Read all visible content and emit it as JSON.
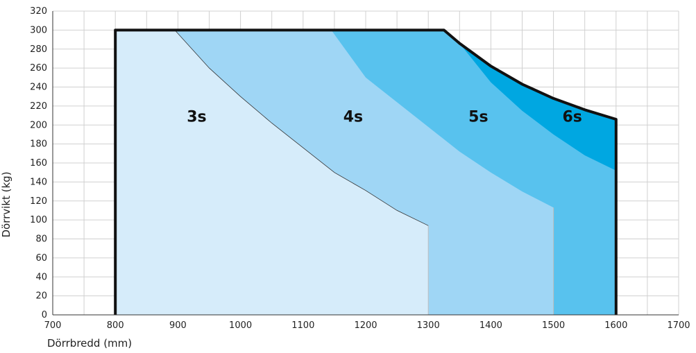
{
  "chart_data": {
    "type": "area",
    "xlabel": "Dörrbredd (mm)",
    "ylabel": "Dörrvikt (kg)",
    "xlim": [
      700,
      1700
    ],
    "ylim": [
      0,
      320
    ],
    "x_ticks": [
      700,
      800,
      900,
      1000,
      1100,
      1200,
      1300,
      1400,
      1500,
      1600,
      1700
    ],
    "y_ticks": [
      0,
      20,
      40,
      60,
      80,
      100,
      120,
      140,
      160,
      180,
      200,
      220,
      240,
      260,
      280,
      300,
      320
    ],
    "grid": true,
    "envelope": {
      "x": [
        800,
        800,
        1325,
        1350,
        1400,
        1450,
        1500,
        1550,
        1600,
        1600
      ],
      "y": [
        0,
        300,
        300,
        286,
        262,
        243,
        228,
        216,
        206,
        0
      ]
    },
    "series": [
      {
        "name": "3s",
        "color": "#d6ecfa",
        "x": [
          800,
          800,
          895,
          950,
          1000,
          1050,
          1100,
          1150,
          1200,
          1250,
          1300,
          1300
        ],
        "y": [
          0,
          300,
          300,
          260,
          230,
          202,
          176,
          150,
          131,
          110,
          94,
          0
        ]
      },
      {
        "name": "4s",
        "color": "#9fd6f5",
        "x": [
          800,
          800,
          1145,
          1200,
          1250,
          1300,
          1350,
          1400,
          1450,
          1500,
          1500
        ],
        "y": [
          0,
          300,
          300,
          250,
          224,
          198,
          172,
          150,
          130,
          113,
          0
        ]
      },
      {
        "name": "5s",
        "color": "#58c2ee",
        "x": [
          800,
          800,
          1325,
          1350,
          1400,
          1450,
          1500,
          1550,
          1600,
          1600
        ],
        "y": [
          0,
          300,
          300,
          286,
          262,
          243,
          228,
          216,
          206,
          0
        ]
      },
      {
        "name": "6s",
        "color": "#00a7e1",
        "x": [
          1350,
          1400,
          1450,
          1500,
          1550,
          1600,
          1600,
          1550,
          1500,
          1450,
          1400
        ],
        "y": [
          286,
          262,
          243,
          228,
          216,
          206,
          152,
          168,
          190,
          215,
          245
        ]
      }
    ],
    "labels": [
      {
        "text": "3s",
        "x": 930,
        "y": 208
      },
      {
        "text": "4s",
        "x": 1180,
        "y": 208
      },
      {
        "text": "5s",
        "x": 1380,
        "y": 208
      },
      {
        "text": "6s",
        "x": 1530,
        "y": 208
      }
    ],
    "colors": {
      "grid": "#d0d0d0",
      "zone_divider": "#bdbdbd",
      "envelope": "#111111",
      "curve": "#333333"
    }
  }
}
